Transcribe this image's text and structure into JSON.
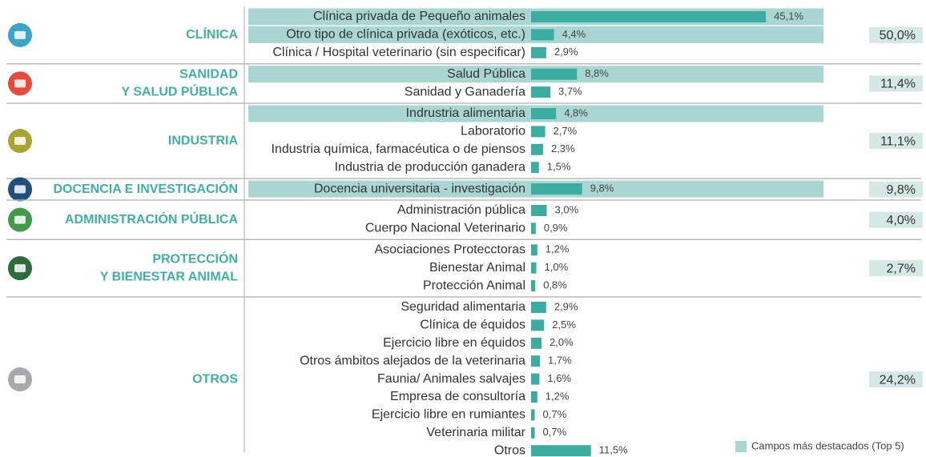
{
  "chart_data": {
    "type": "bar",
    "orientation": "horizontal",
    "color": "#3aada0",
    "highlight_color": "#a9d6d2",
    "total_color": "#d4e9e6",
    "legend": "Campos más destacados (Top 5)",
    "groups": [
      {
        "name": [
          "CLÍNICA"
        ],
        "icon_color": "#3aa5c9",
        "total": 50.0,
        "total_label": "50,0%",
        "categories": [
          "Clínica privada de Pequeño animales",
          "Otro tipo de clínica privada (exóticos, etc.)",
          "Clínica / Hospital veterinario (sin especificar)"
        ],
        "values": [
          45.1,
          4.4,
          2.9
        ],
        "value_labels": [
          "45,1%",
          "4,4%",
          "2,9%"
        ],
        "highlight": [
          true,
          true,
          false
        ]
      },
      {
        "name": [
          "SANIDAD",
          "Y SALUD PÚBLICA"
        ],
        "icon_color": "#e84a3c",
        "total": 11.4,
        "total_label": "11,4%",
        "categories": [
          "Salud Pública",
          "Sanidad y Ganadería"
        ],
        "values": [
          8.8,
          3.7
        ],
        "value_labels": [
          "8,8%",
          "3,7%"
        ],
        "highlight": [
          true,
          false
        ]
      },
      {
        "name": [
          "INDUSTRIA"
        ],
        "icon_color": "#a9a42f",
        "total": 11.1,
        "total_label": "11,1%",
        "categories": [
          "Indrustria alimentaria",
          "Laboratorio",
          "Industria química, farmacéutica o de piensos",
          "Industria de producción ganadera"
        ],
        "values": [
          4.8,
          2.7,
          2.3,
          1.5
        ],
        "value_labels": [
          "4,8%",
          "2,7%",
          "2,3%",
          "1,5%"
        ],
        "highlight": [
          true,
          false,
          false,
          false
        ]
      },
      {
        "name": [
          "DOCENCIA E INVESTIGACIÓN"
        ],
        "icon_color": "#1f4f7a",
        "total": 9.8,
        "total_label": "9,8%",
        "categories": [
          "Docencia universitaria - investigación"
        ],
        "values": [
          9.8
        ],
        "value_labels": [
          "9,8%"
        ],
        "highlight": [
          true
        ]
      },
      {
        "name": [
          "ADMINISTRACIÓN PÚBLICA"
        ],
        "icon_color": "#3f9a4a",
        "total": 4.0,
        "total_label": "4,0%",
        "categories": [
          "Administración pública",
          "Cuerpo Nacional Veterinario"
        ],
        "values": [
          3.0,
          0.9
        ],
        "value_labels": [
          "3,0%",
          "0,9%"
        ],
        "highlight": [
          false,
          false
        ]
      },
      {
        "name": [
          "PROTECCIÓN",
          "Y BIENESTAR ANIMAL"
        ],
        "icon_color": "#2e6b3a",
        "total": 2.7,
        "total_label": "2,7%",
        "categories": [
          "Asociaciones Protecctoras",
          "Bienestar Animal",
          "Protección Animal"
        ],
        "values": [
          1.2,
          1.0,
          0.8
        ],
        "value_labels": [
          "1,2%",
          "1,0%",
          "0,8%"
        ],
        "highlight": [
          false,
          false,
          false
        ]
      },
      {
        "name": [
          "OTROS"
        ],
        "icon_color": "#a7a9ac",
        "total": 24.2,
        "total_label": "24,2%",
        "categories": [
          "Seguridad alimentaria",
          "Clínica de équidos",
          "Ejercicio libre en équidos",
          "Otros ámbitos alejados de la veterinaria",
          "Faunia/ Animales salvajes",
          "Empresa de consultoría",
          "Ejercicio libre en rumiantes",
          "Veterinaria militar",
          "Otros"
        ],
        "values": [
          2.9,
          2.5,
          2.0,
          1.7,
          1.6,
          1.2,
          0.7,
          0.7,
          11.5
        ],
        "value_labels": [
          "2,9%",
          "2,5%",
          "2,0%",
          "1,7%",
          "1,6%",
          "1,2%",
          "0,7%",
          "0,7%",
          "11,5%"
        ],
        "highlight": [
          false,
          false,
          false,
          false,
          false,
          false,
          false,
          false,
          false
        ]
      }
    ]
  }
}
